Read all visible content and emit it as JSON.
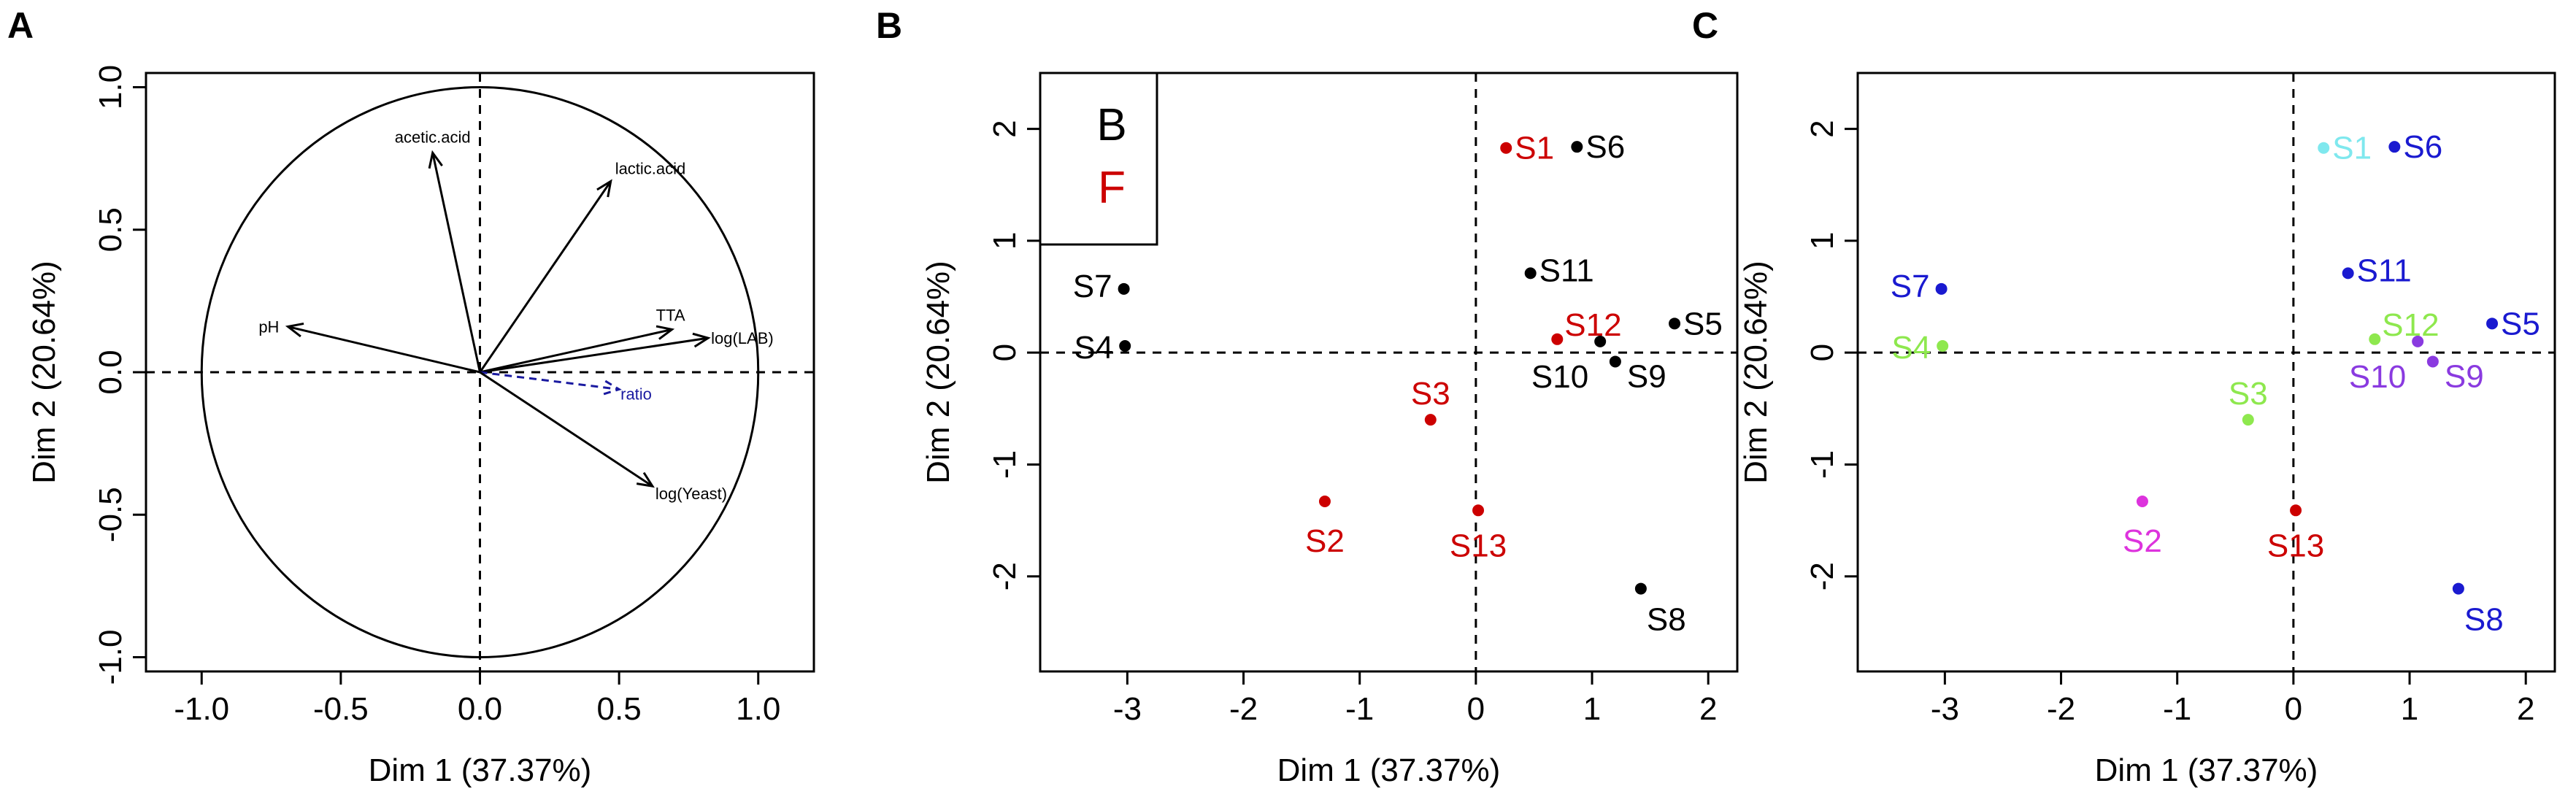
{
  "chart_data": [
    {
      "panel": "A",
      "type": "scatter",
      "title": "",
      "xlabel": "Dim 1 (37.37%)",
      "ylabel": "Dim 2 (20.64%)",
      "xlim": [
        -1.2,
        1.2
      ],
      "ylim": [
        -1.05,
        1.05
      ],
      "xticks": [
        "-1.0",
        "-0.5",
        "0.0",
        "0.5",
        "1.0"
      ],
      "yticks": [
        "-1.0",
        "-0.5",
        "0.0",
        "0.5",
        "1.0"
      ],
      "correlation_circle": true,
      "reference_lines": "dashed at x=0 and y=0",
      "vectors": [
        {
          "name": "acetic.acid",
          "x": -0.17,
          "y": 0.77,
          "color": "#000000",
          "style": "solid"
        },
        {
          "name": "lactic.acid",
          "x": 0.47,
          "y": 0.67,
          "color": "#000000",
          "style": "solid"
        },
        {
          "name": "pH",
          "x": -0.69,
          "y": 0.16,
          "color": "#000000",
          "style": "solid"
        },
        {
          "name": "TTA",
          "x": 0.69,
          "y": 0.15,
          "color": "#000000",
          "style": "solid"
        },
        {
          "name": "log(LAB)",
          "x": 0.82,
          "y": 0.12,
          "color": "#000000",
          "style": "solid"
        },
        {
          "name": "ratio",
          "x": 0.5,
          "y": -0.06,
          "color": "#1a1aa0",
          "style": "dashed"
        },
        {
          "name": "log(Yeast)",
          "x": 0.62,
          "y": -0.4,
          "color": "#000000",
          "style": "solid"
        }
      ]
    },
    {
      "panel": "B",
      "type": "scatter",
      "title": "",
      "xlabel": "Dim 1 (37.37%)",
      "ylabel": "Dim 2 (20.64%)",
      "xlim": [
        -3.75,
        2.25
      ],
      "ylim": [
        -2.85,
        2.5
      ],
      "xticks": [
        "-3",
        "-2",
        "-1",
        "0",
        "1",
        "2"
      ],
      "yticks": [
        "-2",
        "-1",
        "0",
        "1",
        "2"
      ],
      "reference_lines": "dashed at x=0 and y=0",
      "legend": {
        "placement": "top-left",
        "entries": [
          {
            "name": "B",
            "color": "#000000"
          },
          {
            "name": "F",
            "color": "#cc0000"
          }
        ]
      },
      "points": [
        {
          "label": "S1",
          "x": 0.26,
          "y": 1.83,
          "group": "F",
          "color": "#cc0000"
        },
        {
          "label": "S6",
          "x": 0.87,
          "y": 1.84,
          "group": "B",
          "color": "#000000"
        },
        {
          "label": "S11",
          "x": 0.47,
          "y": 0.71,
          "group": "B",
          "color": "#000000"
        },
        {
          "label": "S7",
          "x": -3.03,
          "y": 0.57,
          "group": "B",
          "color": "#000000"
        },
        {
          "label": "S5",
          "x": 1.71,
          "y": 0.26,
          "group": "B",
          "color": "#000000"
        },
        {
          "label": "S12",
          "x": 0.7,
          "y": 0.12,
          "group": "F",
          "color": "#cc0000"
        },
        {
          "label": "S4",
          "x": -3.02,
          "y": 0.06,
          "group": "B",
          "color": "#000000"
        },
        {
          "label": "S10",
          "x": 1.07,
          "y": 0.1,
          "group": "B",
          "color": "#000000"
        },
        {
          "label": "S9",
          "x": 1.2,
          "y": -0.08,
          "group": "B",
          "color": "#000000"
        },
        {
          "label": "S3",
          "x": -0.39,
          "y": -0.6,
          "group": "F",
          "color": "#cc0000"
        },
        {
          "label": "S2",
          "x": -1.3,
          "y": -1.33,
          "group": "F",
          "color": "#cc0000"
        },
        {
          "label": "S13",
          "x": 0.02,
          "y": -1.41,
          "group": "F",
          "color": "#cc0000"
        },
        {
          "label": "S8",
          "x": 1.42,
          "y": -2.11,
          "group": "B",
          "color": "#000000"
        }
      ]
    },
    {
      "panel": "C",
      "type": "scatter",
      "title": "",
      "xlabel": "Dim 1 (37.37%)",
      "ylabel": "Dim 2 (20.64%)",
      "xlim": [
        -3.75,
        2.25
      ],
      "ylim": [
        -2.85,
        2.5
      ],
      "xticks": [
        "-3",
        "-2",
        "-1",
        "0",
        "1",
        "2"
      ],
      "yticks": [
        "-2",
        "-1",
        "0",
        "1",
        "2"
      ],
      "reference_lines": "dashed at x=0 and y=0",
      "points": [
        {
          "label": "S1",
          "x": 0.26,
          "y": 1.83,
          "color": "#7fe8ee"
        },
        {
          "label": "S6",
          "x": 0.87,
          "y": 1.84,
          "color": "#1a1ad0"
        },
        {
          "label": "S11",
          "x": 0.47,
          "y": 0.71,
          "color": "#1a1ad0"
        },
        {
          "label": "S7",
          "x": -3.03,
          "y": 0.57,
          "color": "#1a1ad0"
        },
        {
          "label": "S5",
          "x": 1.71,
          "y": 0.26,
          "color": "#1a1ad0"
        },
        {
          "label": "S12",
          "x": 0.7,
          "y": 0.12,
          "color": "#8ee84e"
        },
        {
          "label": "S4",
          "x": -3.02,
          "y": 0.06,
          "color": "#8ee84e"
        },
        {
          "label": "S10",
          "x": 1.07,
          "y": 0.1,
          "color": "#8a3ae0"
        },
        {
          "label": "S9",
          "x": 1.2,
          "y": -0.08,
          "color": "#8a3ae0"
        },
        {
          "label": "S3",
          "x": -0.39,
          "y": -0.6,
          "color": "#8ee84e"
        },
        {
          "label": "S2",
          "x": -1.3,
          "y": -1.33,
          "color": "#dd33dd"
        },
        {
          "label": "S13",
          "x": 0.02,
          "y": -1.41,
          "color": "#cc0000"
        },
        {
          "label": "S8",
          "x": 1.42,
          "y": -2.11,
          "color": "#1a1ad0"
        }
      ]
    }
  ]
}
